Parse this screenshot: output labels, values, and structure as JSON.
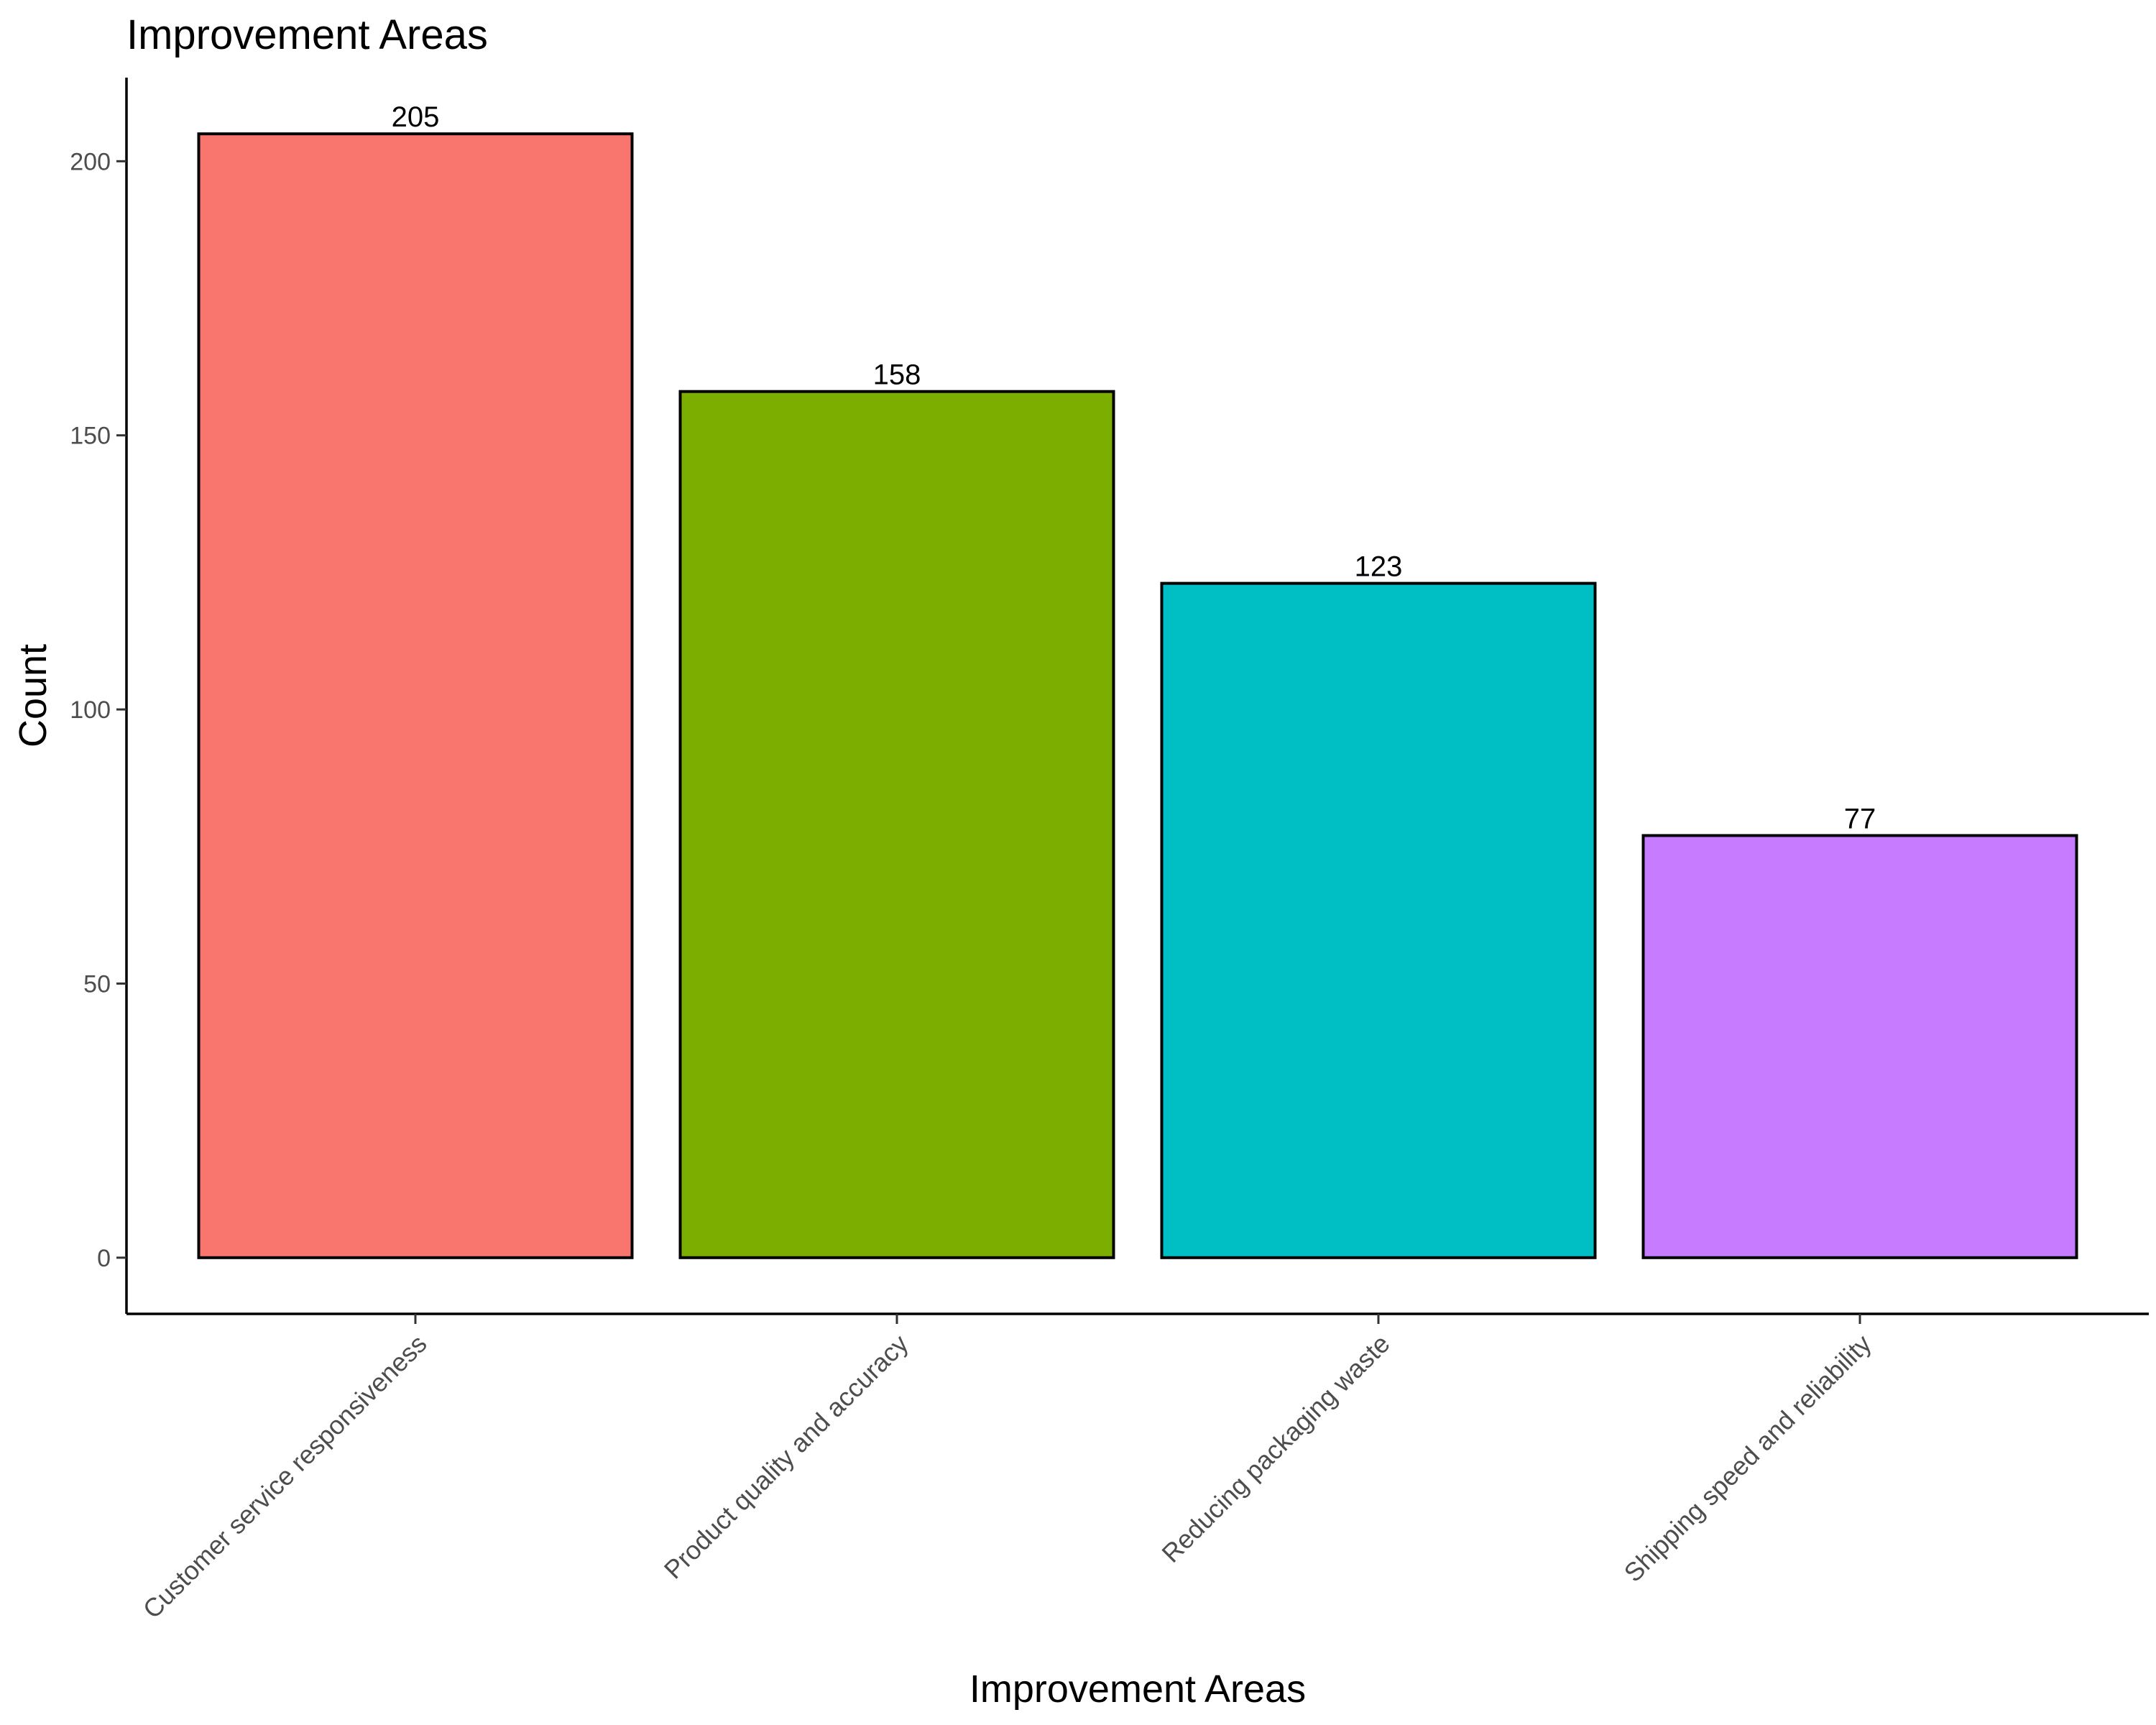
{
  "chart_data": {
    "type": "bar",
    "title": "Improvement Areas",
    "xlabel": "Improvement Areas",
    "ylabel": "Count",
    "categories": [
      "Customer service responsiveness",
      "Product quality and accuracy",
      "Reducing packaging waste",
      "Shipping speed and reliability"
    ],
    "values": [
      205,
      158,
      123,
      77
    ],
    "colors": [
      "#F8766D",
      "#7CAE00",
      "#00BFC4",
      "#C77CFF"
    ],
    "y_ticks": [
      0,
      50,
      100,
      150,
      200
    ],
    "y_tick_labels": [
      "0",
      "50",
      "100",
      "150",
      "200"
    ],
    "ylim": [
      -10.25,
      215.25
    ],
    "grid": false,
    "legend": "none"
  }
}
